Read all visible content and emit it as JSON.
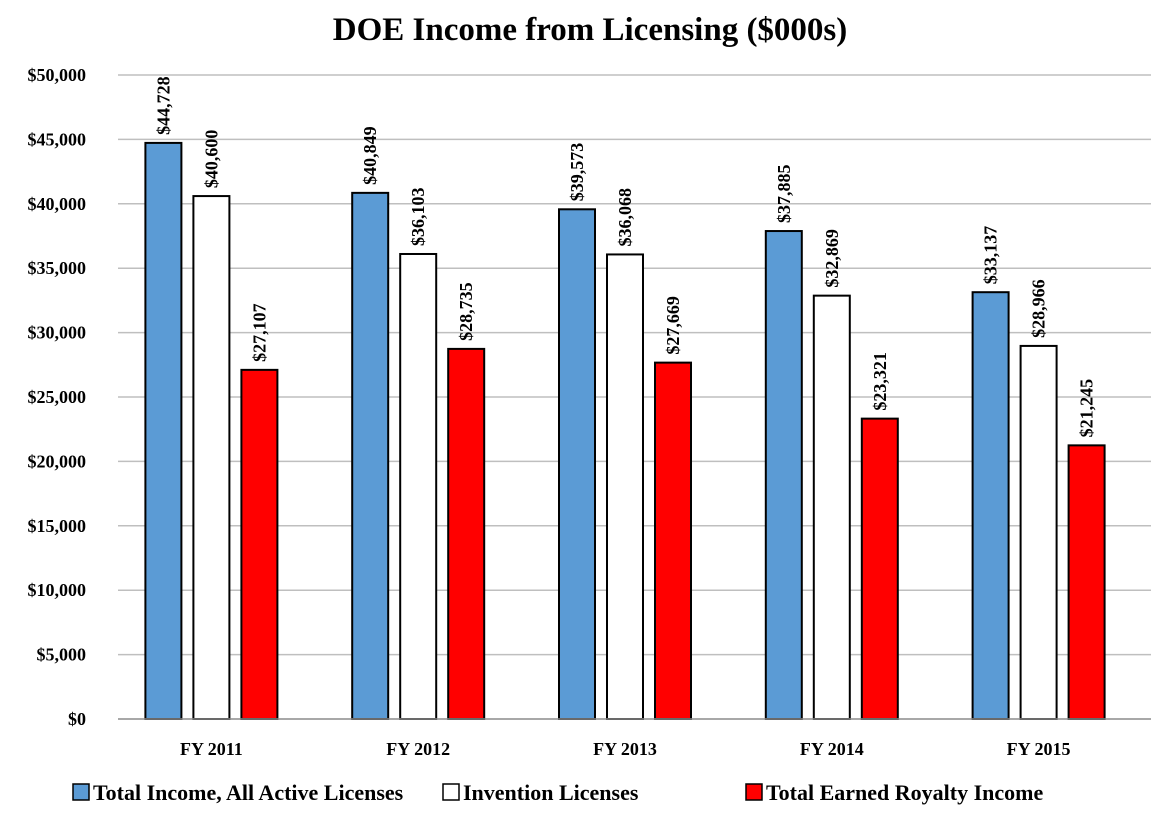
{
  "chart_data": {
    "type": "bar",
    "title": "DOE Income from Licensing ($000s)",
    "xlabel": "",
    "ylabel": "",
    "categories": [
      "FY 2011",
      "FY 2012",
      "FY 2013",
      "FY 2014",
      "FY 2015"
    ],
    "ylim": [
      0,
      50000
    ],
    "ytick_step": 5000,
    "yticks": [
      "$0",
      "$5,000",
      "$10,000",
      "$15,000",
      "$20,000",
      "$25,000",
      "$30,000",
      "$35,000",
      "$40,000",
      "$45,000",
      "$50,000"
    ],
    "grid": true,
    "legend_position": "bottom",
    "series": [
      {
        "name": "Total Income, All Active Licenses",
        "color": "#5b9bd5",
        "values": [
          44728,
          40849,
          39573,
          37885,
          33137
        ],
        "labels": [
          "$44,728",
          "$40,849",
          "$39,573",
          "$37,885",
          "$33,137"
        ]
      },
      {
        "name": "Invention Licenses",
        "color": "#ffffff",
        "values": [
          40600,
          36103,
          36068,
          32869,
          28966
        ],
        "labels": [
          "$40,600",
          "$36,103",
          "$36,068",
          "$32,869",
          "$28,966"
        ]
      },
      {
        "name": "Total Earned Royalty Income",
        "color": "#ff0000",
        "values": [
          27107,
          28735,
          27669,
          23321,
          21245
        ],
        "labels": [
          "$27,107",
          "$28,735",
          "$27,669",
          "$23,321",
          "$21,245"
        ]
      }
    ]
  }
}
